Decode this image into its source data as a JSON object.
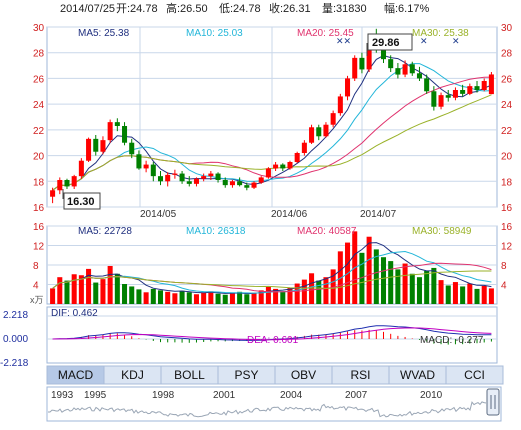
{
  "header": {
    "date": "2014/07/25",
    "open": "开:24.78",
    "high": "高:26.50",
    "low": "低:24.78",
    "close": "收:26.31",
    "volume": "量:31830",
    "change": "幅:6.17%"
  },
  "colors": {
    "up": "#ff0000",
    "down": "#008000",
    "ma5": "#1f2f7f",
    "ma10": "#23b6d9",
    "ma20": "#e0336e",
    "ma30": "#9ab22a",
    "axis": "#d02020",
    "grid": "#c9d7ea",
    "tab_bg": "#dbe5f3",
    "tab_active": "#b6c9e6"
  },
  "price_panel": {
    "ma5": "MA5: 25.38",
    "ma10": "MA10: 25.03",
    "ma20": "MA20: 25.45",
    "ma30": "MA30: 25.38",
    "y_ticks": [
      "30",
      "28",
      "26",
      "24",
      "22",
      "20",
      "18",
      "16"
    ],
    "x_labels": [
      "2014/05",
      "2014/06",
      "2014/07"
    ],
    "max_label": "29.86",
    "min_label": "16.30"
  },
  "volume_panel": {
    "ma5": "MA5: 22728",
    "ma10": "MA10: 26318",
    "ma20": "MA20: 40587",
    "ma30": "MA30: 58949",
    "y_ticks": [
      "16",
      "12",
      "8",
      "4"
    ],
    "unit": "x万"
  },
  "macd_panel": {
    "dif": "DIF: 0.462",
    "dea": "DEA: 0.601",
    "macd": "MACD: -0.277",
    "y_ticks": [
      "2.218",
      "0.000",
      "-2.218"
    ]
  },
  "tabs": [
    "MACD",
    "KDJ",
    "BOLL",
    "PSY",
    "OBV",
    "RSI",
    "WVAD",
    "CCI"
  ],
  "active_tab": "MACD",
  "timeline": {
    "years": [
      "1993",
      "1995",
      "1998",
      "2001",
      "2004",
      "2007",
      "2010"
    ]
  },
  "chart_data": {
    "type": "candlestick",
    "y_range": [
      16,
      30
    ],
    "candles": [
      [
        16.8,
        17.5,
        16.3,
        17.3
      ],
      [
        17.3,
        18.3,
        17.0,
        18.1
      ],
      [
        18.1,
        18.2,
        17.4,
        17.6
      ],
      [
        17.6,
        18.5,
        17.4,
        18.4
      ],
      [
        18.4,
        19.8,
        18.2,
        19.6
      ],
      [
        19.6,
        21.4,
        19.5,
        21.3
      ],
      [
        21.3,
        21.6,
        20.0,
        20.3
      ],
      [
        20.3,
        21.5,
        20.1,
        21.2
      ],
      [
        21.2,
        22.8,
        21.0,
        22.6
      ],
      [
        22.6,
        22.9,
        21.9,
        22.3
      ],
      [
        22.3,
        22.6,
        20.8,
        21.0
      ],
      [
        21.0,
        21.3,
        19.8,
        20.1
      ],
      [
        20.1,
        20.4,
        18.9,
        19.0
      ],
      [
        19.0,
        19.6,
        18.7,
        19.3
      ],
      [
        19.3,
        19.5,
        18.0,
        18.4
      ],
      [
        18.4,
        18.8,
        17.7,
        18.0
      ],
      [
        18.0,
        18.7,
        17.6,
        18.5
      ],
      [
        18.5,
        18.9,
        18.2,
        18.6
      ],
      [
        18.6,
        18.8,
        17.8,
        18.0
      ],
      [
        18.0,
        18.4,
        17.6,
        17.8
      ],
      [
        17.8,
        18.3,
        17.6,
        18.2
      ],
      [
        18.2,
        18.6,
        18.0,
        18.4
      ],
      [
        18.4,
        18.8,
        18.1,
        18.6
      ],
      [
        18.6,
        18.7,
        17.9,
        18.1
      ],
      [
        18.1,
        18.3,
        17.5,
        17.7
      ],
      [
        17.7,
        18.1,
        17.5,
        18.0
      ],
      [
        18.0,
        18.3,
        17.6,
        17.7
      ],
      [
        17.7,
        17.9,
        17.3,
        17.5
      ],
      [
        17.5,
        18.0,
        17.4,
        17.9
      ],
      [
        17.9,
        18.4,
        17.8,
        18.3
      ],
      [
        18.3,
        19.1,
        18.2,
        19.0
      ],
      [
        19.0,
        19.5,
        18.8,
        19.3
      ],
      [
        19.3,
        19.4,
        18.8,
        19.0
      ],
      [
        19.0,
        19.6,
        18.9,
        19.5
      ],
      [
        19.5,
        20.3,
        19.4,
        20.2
      ],
      [
        20.2,
        21.2,
        20.0,
        21.0
      ],
      [
        21.0,
        22.4,
        20.9,
        22.2
      ],
      [
        22.2,
        22.4,
        21.2,
        21.5
      ],
      [
        21.5,
        22.6,
        21.4,
        22.4
      ],
      [
        22.4,
        23.5,
        22.2,
        23.3
      ],
      [
        23.3,
        24.8,
        23.1,
        24.6
      ],
      [
        24.6,
        26.2,
        24.3,
        26.0
      ],
      [
        26.0,
        27.8,
        25.8,
        27.6
      ],
      [
        27.6,
        28.0,
        26.4,
        26.7
      ],
      [
        26.7,
        28.9,
        26.5,
        28.7
      ],
      [
        28.7,
        29.86,
        28.0,
        28.4
      ],
      [
        28.4,
        28.8,
        27.2,
        27.5
      ],
      [
        27.5,
        27.8,
        26.5,
        26.8
      ],
      [
        26.8,
        27.2,
        26.0,
        26.3
      ],
      [
        26.3,
        27.4,
        26.1,
        27.1
      ],
      [
        27.1,
        27.3,
        26.2,
        26.4
      ],
      [
        26.4,
        26.9,
        25.8,
        26.0
      ],
      [
        26.0,
        26.3,
        24.8,
        25.0
      ],
      [
        25.0,
        25.4,
        23.5,
        23.8
      ],
      [
        23.8,
        24.9,
        23.6,
        24.7
      ],
      [
        24.7,
        25.1,
        24.2,
        24.5
      ],
      [
        24.5,
        25.3,
        24.3,
        25.1
      ],
      [
        25.1,
        25.5,
        24.6,
        24.8
      ],
      [
        24.8,
        25.6,
        24.7,
        25.4
      ],
      [
        25.4,
        25.8,
        24.9,
        25.1
      ],
      [
        25.1,
        26.0,
        25.0,
        25.8
      ],
      [
        24.78,
        26.5,
        24.78,
        26.31
      ]
    ],
    "volume": [
      3.2,
      5.5,
      4.8,
      6.1,
      5.9,
      7.2,
      4.4,
      5.1,
      7.8,
      6.2,
      4.1,
      3.6,
      3.0,
      2.4,
      3.1,
      2.8,
      2.5,
      2.2,
      2.7,
      2.4,
      2.0,
      2.3,
      2.6,
      2.1,
      1.9,
      2.2,
      2.5,
      2.0,
      2.3,
      2.8,
      3.5,
      3.1,
      2.6,
      3.3,
      4.2,
      5.0,
      6.3,
      4.8,
      5.5,
      7.1,
      10.8,
      12.6,
      14.9,
      10.5,
      13.8,
      11.2,
      9.6,
      8.8,
      7.1,
      8.3,
      6.2,
      5.5,
      6.8,
      7.4,
      4.9,
      3.8,
      4.5,
      3.6,
      4.2,
      3.1,
      3.7,
      3.2
    ],
    "dif_first": 0.3,
    "dif_peak": 2.2,
    "dif_last": 0.462,
    "dea_last": 0.601,
    "macd_last": -0.277
  }
}
